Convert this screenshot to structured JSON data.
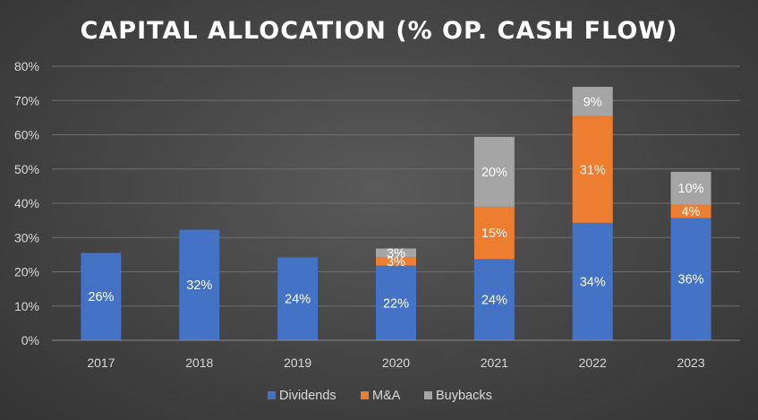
{
  "chart_data": {
    "type": "bar",
    "stacked": true,
    "title": "CAPITAL ALLOCATION (% OP. CASH FLOW)",
    "categories": [
      "2017",
      "2018",
      "2019",
      "2020",
      "2021",
      "2022",
      "2023"
    ],
    "series": [
      {
        "name": "Dividends",
        "color": "#4472c4",
        "values": [
          25.5,
          32.3,
          24.2,
          21.8,
          23.7,
          34.3,
          35.7
        ],
        "labels": [
          "26%",
          "32%",
          "24%",
          "22%",
          "24%",
          "34%",
          "36%"
        ]
      },
      {
        "name": "M&A",
        "color": "#ed7d31",
        "values": [
          null,
          null,
          null,
          2.5,
          15.3,
          31.1,
          3.9
        ],
        "labels": [
          "",
          "",
          "",
          "3%",
          "15%",
          "31%",
          "4%"
        ]
      },
      {
        "name": "Buybacks",
        "color": "#a5a5a5",
        "values": [
          null,
          null,
          null,
          2.5,
          20.4,
          8.6,
          9.6
        ],
        "labels": [
          "",
          "",
          "",
          "3%",
          "20%",
          "9%",
          "10%"
        ]
      }
    ],
    "ylim": [
      0,
      80
    ],
    "yticks": [
      0,
      10,
      20,
      30,
      40,
      50,
      60,
      70,
      80
    ],
    "ytick_labels": [
      "0%",
      "10%",
      "20%",
      "30%",
      "40%",
      "50%",
      "60%",
      "70%",
      "80%"
    ],
    "grid": true,
    "legend": "bottom"
  }
}
